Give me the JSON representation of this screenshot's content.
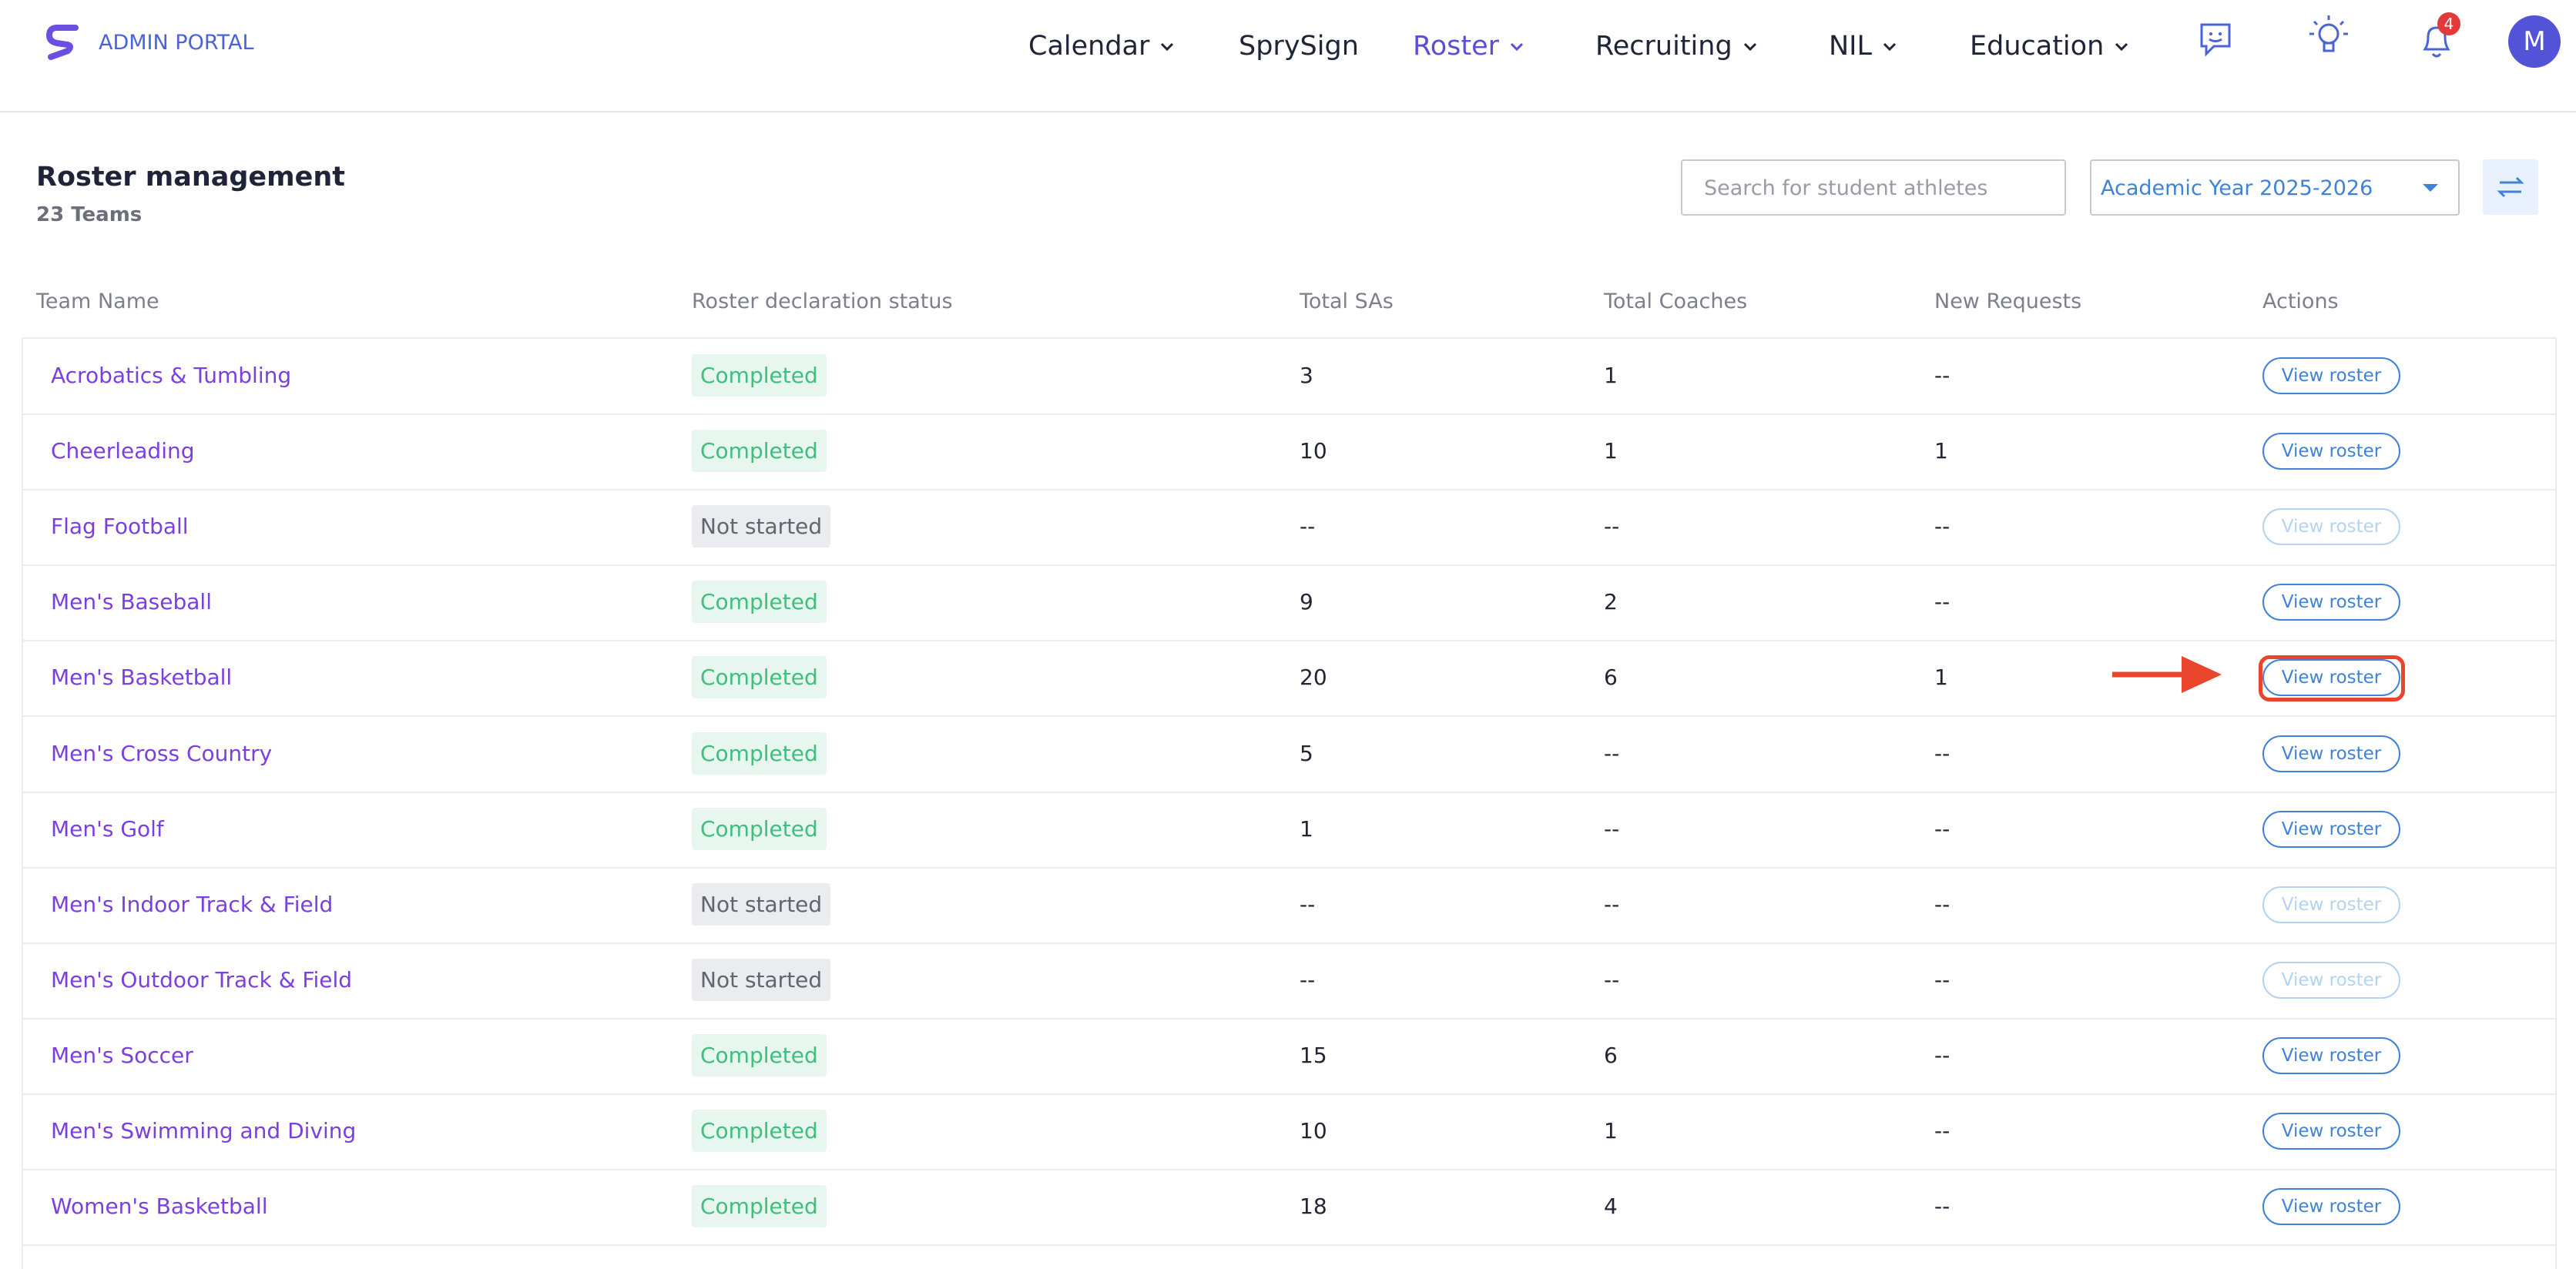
{
  "header": {
    "brand": "ADMIN PORTAL",
    "nav": [
      {
        "label": "Calendar",
        "has_menu": true,
        "active": false
      },
      {
        "label": "SprySign",
        "has_menu": false,
        "active": false
      },
      {
        "label": "Roster",
        "has_menu": true,
        "active": true
      },
      {
        "label": "Recruiting",
        "has_menu": true,
        "active": false
      },
      {
        "label": "NIL",
        "has_menu": true,
        "active": false
      },
      {
        "label": "Education",
        "has_menu": true,
        "active": false
      }
    ],
    "notification_count": "4",
    "avatar": "M"
  },
  "page": {
    "title": "Roster management",
    "subtitle": "23 Teams",
    "search_placeholder": "Search for student athletes",
    "year_select": "Academic Year 2025-2026"
  },
  "table": {
    "columns": [
      "Team Name",
      "Roster declaration status",
      "Total SAs",
      "Total Coaches",
      "New Requests",
      "Actions"
    ],
    "highlight_row": 4,
    "rows": [
      [
        "Acrobatics & Tumbling",
        "Completed",
        "3",
        "1",
        "--",
        "View roster",
        true
      ],
      [
        "Cheerleading",
        "Completed",
        "10",
        "1",
        "1",
        "View roster",
        true
      ],
      [
        "Flag Football",
        "Not started",
        "--",
        "--",
        "--",
        "View roster",
        false
      ],
      [
        "Men's Baseball",
        "Completed",
        "9",
        "2",
        "--",
        "View roster",
        true
      ],
      [
        "Men's Basketball",
        "Completed",
        "20",
        "6",
        "1",
        "View roster",
        true
      ],
      [
        "Men's Cross Country",
        "Completed",
        "5",
        "--",
        "--",
        "View roster",
        true
      ],
      [
        "Men's Golf",
        "Completed",
        "1",
        "--",
        "--",
        "View roster",
        true
      ],
      [
        "Men's Indoor Track & Field",
        "Not started",
        "--",
        "--",
        "--",
        "View roster",
        false
      ],
      [
        "Men's Outdoor Track & Field",
        "Not started",
        "--",
        "--",
        "--",
        "View roster",
        false
      ],
      [
        "Men's Soccer",
        "Completed",
        "15",
        "6",
        "--",
        "View roster",
        true
      ],
      [
        "Men's Swimming and Diving",
        "Completed",
        "10",
        "1",
        "--",
        "View roster",
        true
      ],
      [
        "Women's Basketball",
        "Completed",
        "18",
        "4",
        "--",
        "View roster",
        true
      ]
    ]
  }
}
